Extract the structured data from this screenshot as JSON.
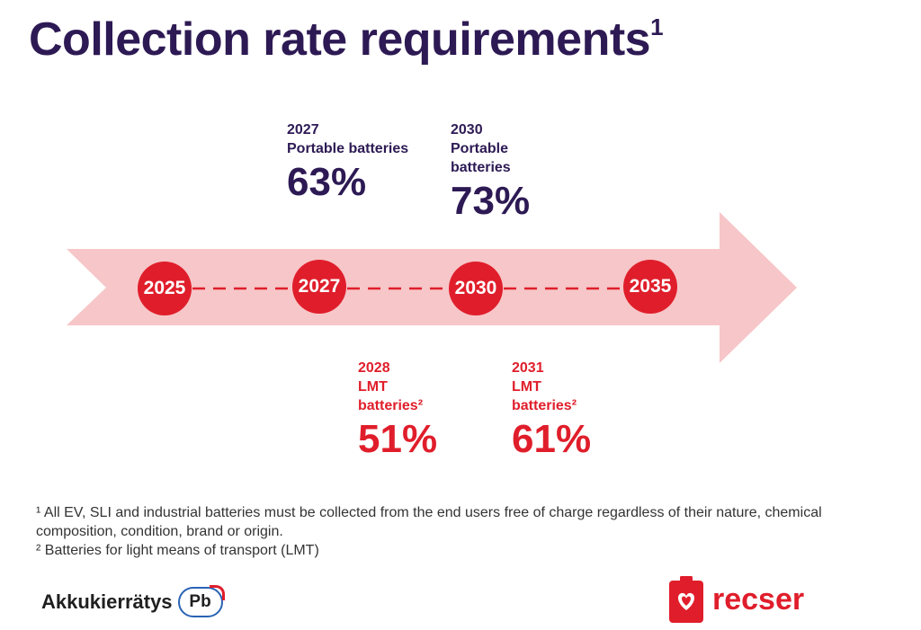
{
  "title": "Collection rate requirements",
  "title_sup": "1",
  "timeline": {
    "years": [
      "2025",
      "2027",
      "2030",
      "2035"
    ]
  },
  "callouts_top": [
    {
      "label_lines": [
        "2027",
        "Portable batteries"
      ],
      "value": "63%"
    },
    {
      "label_lines": [
        "2030",
        "Portable",
        "batteries"
      ],
      "value": "73%"
    }
  ],
  "callouts_bottom": [
    {
      "label_lines": [
        "2028",
        "LMT",
        "batteries²"
      ],
      "value": "51%"
    },
    {
      "label_lines": [
        "2031",
        "LMT",
        "batteries²"
      ],
      "value": "61%"
    }
  ],
  "footnotes": [
    "¹ All EV, SLI and industrial batteries must be collected from the end users free of charge regardless of their nature, chemical composition, condition, brand or origin.",
    "² Batteries for light means of transport (LMT)"
  ],
  "logos": {
    "left_word": "Akkukierrätys",
    "left_badge": "Pb",
    "right_word": "recser"
  },
  "colors": {
    "title": "#2d1a54",
    "accent_red": "#e01e2b",
    "arrow_fill": "#f7c6c8"
  }
}
